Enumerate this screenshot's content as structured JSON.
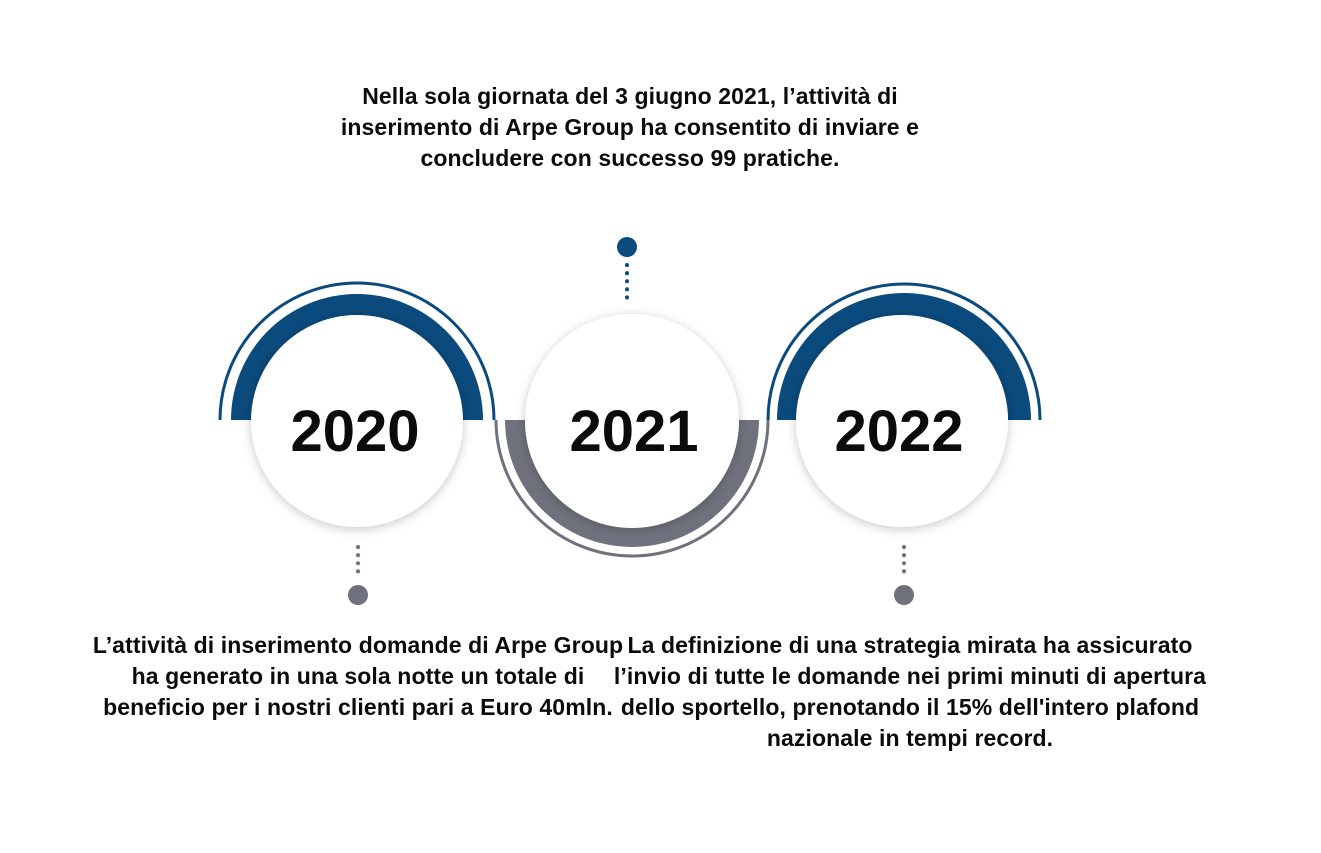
{
  "timeline": [
    {
      "year": "2020",
      "text": "L’attività di inserimento domande di Arpe Group ha generato in una sola notte un totale di beneficio per i nostri clienti pari a Euro 40mln.",
      "accent": "#0a4a7c"
    },
    {
      "year": "2021",
      "text": "Nella sola giornata del 3 giugno 2021, l’attività di inserimento di Arpe Group ha consentito di inviare e concludere con successo 99 pratiche.",
      "accent": "#6f727c"
    },
    {
      "year": "2022",
      "text": "La definizione di una strategia mirata ha assicurato l’invio di tutte le domande nei primi minuti di apertura dello sportello, prenotando il 15% dell'intero plafond nazionale in tempi record.",
      "accent": "#0a4a7c"
    }
  ],
  "colors": {
    "blue": "#0a4a7c",
    "gray": "#6f727c",
    "circle_fill": "#ffffff",
    "text": "#0b0b0b"
  }
}
